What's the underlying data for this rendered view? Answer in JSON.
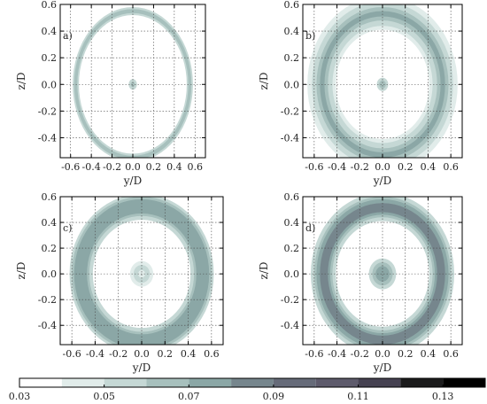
{
  "chart_data": [
    {
      "type": "heatmap",
      "panel_label": "a)",
      "xlabel": "y/D",
      "ylabel": "z/D",
      "xlim": [
        -0.7,
        0.7
      ],
      "ylim": [
        -0.55,
        0.6
      ],
      "xticks": [
        "-0.6",
        "-0.4",
        "-0.2",
        "0.0",
        "0.2",
        "0.4",
        "0.6"
      ],
      "yticks": [
        "0.6",
        "0.4",
        "0.2",
        "0.0",
        "-0.2",
        "-0.4"
      ],
      "grid": true,
      "rings": [
        {
          "r_inner": 0.52,
          "r_outer": 0.58,
          "value": 0.05
        },
        {
          "r_inner": 0.535,
          "r_outer": 0.565,
          "value": 0.06
        },
        {
          "r_inner": 0.0,
          "r_outer": 0.04,
          "value": 0.05
        },
        {
          "r_inner": 0.0,
          "r_outer": 0.02,
          "value": 0.06
        }
      ]
    },
    {
      "type": "heatmap",
      "panel_label": "b)",
      "xlabel": "y/D",
      "ylabel": "z/D",
      "xlim": [
        -0.7,
        0.7
      ],
      "ylim": [
        -0.55,
        0.6
      ],
      "xticks": [
        "-0.6",
        "-0.4",
        "-0.2",
        "0.0",
        "0.2",
        "0.4",
        "0.6"
      ],
      "yticks": [
        "0.6",
        "0.4",
        "0.2",
        "0.0",
        "-0.2",
        "-0.4"
      ],
      "grid": true,
      "rings": [
        {
          "r_inner": 0.41,
          "r_outer": 0.66,
          "value": 0.04
        },
        {
          "r_inner": 0.44,
          "r_outer": 0.62,
          "value": 0.05
        },
        {
          "r_inner": 0.48,
          "r_outer": 0.58,
          "value": 0.06
        },
        {
          "r_inner": 0.51,
          "r_outer": 0.55,
          "value": 0.07
        },
        {
          "r_inner": 0.0,
          "r_outer": 0.05,
          "value": 0.05
        },
        {
          "r_inner": 0.0,
          "r_outer": 0.03,
          "value": 0.06
        }
      ]
    },
    {
      "type": "heatmap",
      "panel_label": "c)",
      "xlabel": "y/D",
      "ylabel": "z/D",
      "xlim": [
        -0.7,
        0.7
      ],
      "ylim": [
        -0.55,
        0.6
      ],
      "xticks": [
        "-0.6",
        "-0.4",
        "-0.2",
        "0.0",
        "0.2",
        "0.4",
        "0.6"
      ],
      "yticks": [
        "0.6",
        "0.4",
        "0.2",
        "0.0",
        "-0.2",
        "-0.4"
      ],
      "grid": true,
      "rings": [
        {
          "r_inner": 0.42,
          "r_outer": 0.62,
          "value": 0.05
        },
        {
          "r_inner": 0.45,
          "r_outer": 0.6,
          "value": 0.06
        },
        {
          "r_inner": 0.47,
          "r_outer": 0.58,
          "value": 0.07
        },
        {
          "r_inner": 0.0,
          "r_outer": 0.1,
          "value": 0.04
        },
        {
          "r_inner": 0.03,
          "r_outer": 0.07,
          "value": 0.05
        }
      ]
    },
    {
      "type": "heatmap",
      "panel_label": "d)",
      "xlabel": "y/D",
      "ylabel": "z/D",
      "xlim": [
        -0.7,
        0.7
      ],
      "ylim": [
        -0.55,
        0.6
      ],
      "xticks": [
        "-0.6",
        "-0.4",
        "-0.2",
        "0.0",
        "0.2",
        "0.4",
        "0.6"
      ],
      "yticks": [
        "0.6",
        "0.4",
        "0.2",
        "0.0",
        "-0.2",
        "-0.4"
      ],
      "grid": true,
      "rings": [
        {
          "r_inner": 0.41,
          "r_outer": 0.63,
          "value": 0.05
        },
        {
          "r_inner": 0.44,
          "r_outer": 0.6,
          "value": 0.06
        },
        {
          "r_inner": 0.46,
          "r_outer": 0.58,
          "value": 0.07
        },
        {
          "r_inner": 0.48,
          "r_outer": 0.55,
          "value": 0.08
        },
        {
          "r_inner": 0.0,
          "r_outer": 0.12,
          "value": 0.05
        },
        {
          "r_inner": 0.0,
          "r_outer": 0.09,
          "value": 0.06
        },
        {
          "r_inner": 0.0,
          "r_outer": 0.06,
          "value": 0.07
        }
      ]
    }
  ],
  "colorbar": {
    "labels": [
      "0.03",
      "0.05",
      "0.07",
      "0.09",
      "0.11",
      "0.13"
    ],
    "levels": [
      0.03,
      0.04,
      0.05,
      0.06,
      0.07,
      0.08,
      0.09,
      0.1,
      0.11,
      0.12,
      0.13,
      0.14
    ],
    "colors": [
      "#ffffff",
      "#e1ecea",
      "#c5d8d5",
      "#a7c0bd",
      "#8ba7a6",
      "#76868d",
      "#666b79",
      "#5e5b6c",
      "#464252",
      "#1b1b1c",
      "#000000"
    ]
  }
}
